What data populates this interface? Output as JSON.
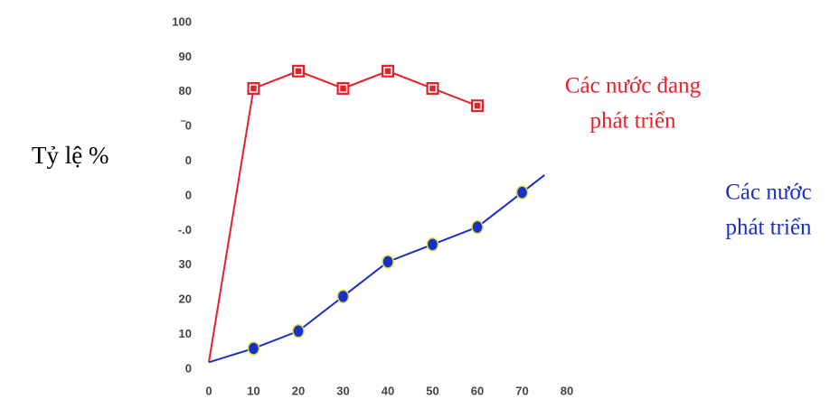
{
  "chart_data": {
    "type": "line",
    "y_label": "Tỷ lệ %",
    "xlim": [
      0,
      80
    ],
    "ylim": [
      0,
      100
    ],
    "xticks": [
      0,
      10,
      20,
      30,
      40,
      50,
      60,
      70,
      80
    ],
    "yticks": [
      0,
      10,
      20,
      30,
      {
        "value": 40,
        "label": "-.0"
      },
      {
        "value": 50,
        "label": "0"
      },
      {
        "value": 60,
        "label": "0"
      },
      {
        "value": 70,
        "label": "‾0"
      },
      80,
      90,
      100
    ],
    "grid": false,
    "series": [
      {
        "label_lines": [
          "Các nước đang",
          "phát triển"
        ],
        "color": "#e8202a",
        "marker": "square",
        "x": [
          0,
          10,
          20,
          30,
          40,
          50,
          60
        ],
        "values": [
          2,
          81,
          86,
          81,
          86,
          81,
          76
        ]
      },
      {
        "label_lines": [
          "Các nước",
          "phát triển"
        ],
        "color": "#1a2fc8",
        "marker": "circle",
        "x": [
          0,
          10,
          20,
          30,
          40,
          50,
          60,
          70,
          75
        ],
        "values": [
          2,
          6,
          11,
          21,
          31,
          36,
          41,
          51,
          56
        ]
      }
    ]
  }
}
